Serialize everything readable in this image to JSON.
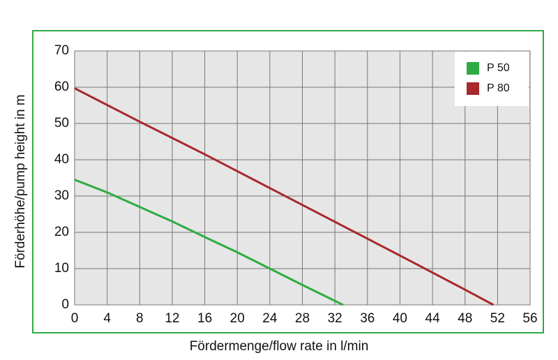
{
  "chart_data": {
    "type": "line",
    "x_label": "Fördermenge/flow rate in l/min",
    "y_label": "Förderhöhe/pump height in m",
    "xlim": [
      0,
      56
    ],
    "xticks": [
      0,
      4,
      8,
      12,
      16,
      20,
      24,
      28,
      32,
      36,
      40,
      44,
      48,
      52,
      56
    ],
    "ylim": [
      0,
      70
    ],
    "yticks": [
      0,
      10,
      20,
      30,
      40,
      50,
      60,
      70
    ],
    "grid": true,
    "legend": "upper right",
    "series": [
      {
        "name": "P 50",
        "color": "#2eab44",
        "x": [
          0,
          4,
          8,
          12,
          16,
          20,
          24,
          28,
          33
        ],
        "values": [
          34.5,
          31,
          27,
          23,
          18.7,
          14.5,
          10,
          5.5,
          0
        ]
      },
      {
        "name": "P 80",
        "color": "#a8282b",
        "x": [
          0,
          8,
          16,
          24,
          32,
          40,
          48,
          51.5
        ],
        "values": [
          59.7,
          50.5,
          41.5,
          32.2,
          22.9,
          13.6,
          4.2,
          0
        ]
      }
    ]
  }
}
